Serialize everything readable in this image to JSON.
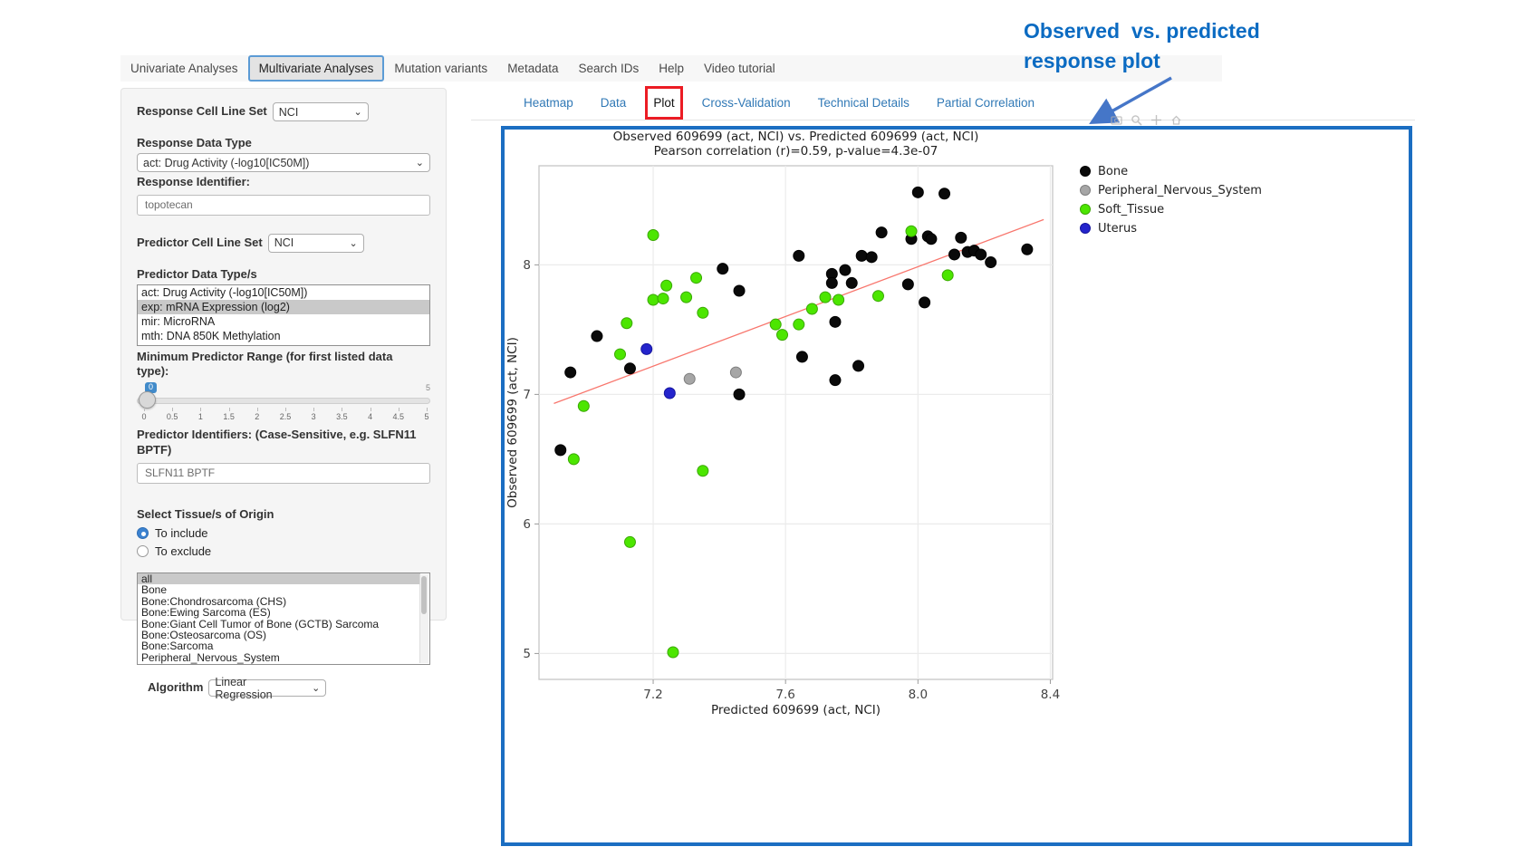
{
  "annotation": {
    "line1": "Observed  vs. predicted",
    "line2": "response plot"
  },
  "nav": {
    "items": [
      {
        "label": "Univariate Analyses",
        "active": false
      },
      {
        "label": "Multivariate Analyses",
        "active": true
      },
      {
        "label": "Mutation variants",
        "active": false
      },
      {
        "label": "Metadata",
        "active": false
      },
      {
        "label": "Search IDs",
        "active": false
      },
      {
        "label": "Help",
        "active": false
      },
      {
        "label": "Video tutorial",
        "active": false
      }
    ]
  },
  "sidebar": {
    "response_cell_line_set": {
      "label": "Response Cell Line Set",
      "value": "NCI"
    },
    "response_data_type": {
      "label": "Response Data Type",
      "value": "act: Drug Activity (-log10[IC50M])"
    },
    "response_identifier": {
      "label": "Response Identifier:",
      "value": "topotecan"
    },
    "predictor_cell_line_set": {
      "label": "Predictor Cell Line Set",
      "value": "NCI"
    },
    "predictor_data_types": {
      "label": "Predictor Data Type/s",
      "options": [
        {
          "label": "act: Drug Activity (-log10[IC50M])",
          "selected": false
        },
        {
          "label": "exp: mRNA Expression (log2)",
          "selected": true
        },
        {
          "label": "mir: MicroRNA",
          "selected": false
        },
        {
          "label": "mth: DNA 850K Methylation",
          "selected": false
        }
      ]
    },
    "min_predictor_range": {
      "label": "Minimum Predictor Range (for first listed data type):",
      "value": "0",
      "max_label": "5",
      "ticks": [
        "0",
        "0.5",
        "1",
        "1.5",
        "2",
        "2.5",
        "3",
        "3.5",
        "4",
        "4.5",
        "5"
      ]
    },
    "predictor_identifiers": {
      "label": "Predictor Identifiers: (Case-Sensitive, e.g. SLFN11 BPTF)",
      "value": "SLFN11 BPTF"
    },
    "tissue_origin": {
      "label": "Select Tissue/s of Origin",
      "options": [
        {
          "label": "To include",
          "selected": true
        },
        {
          "label": "To exclude",
          "selected": false
        }
      ]
    },
    "tissue_list": {
      "options": [
        {
          "label": "all",
          "selected": true
        },
        {
          "label": "Bone",
          "selected": false
        },
        {
          "label": "Bone:Chondrosarcoma (CHS)",
          "selected": false
        },
        {
          "label": "Bone:Ewing Sarcoma (ES)",
          "selected": false
        },
        {
          "label": "Bone:Giant Cell Tumor of Bone (GCTB) Sarcoma",
          "selected": false
        },
        {
          "label": "Bone:Osteosarcoma (OS)",
          "selected": false
        },
        {
          "label": "Bone:Sarcoma",
          "selected": false
        },
        {
          "label": "Peripheral_Nervous_System",
          "selected": false
        }
      ]
    },
    "algorithm": {
      "label": "Algorithm",
      "value": "Linear Regression"
    }
  },
  "subtabs": {
    "items": [
      {
        "label": "Heatmap",
        "active": false,
        "highlighted": false
      },
      {
        "label": "Data",
        "active": false,
        "highlighted": false
      },
      {
        "label": "Plot",
        "active": true,
        "highlighted": true
      },
      {
        "label": "Cross-Validation",
        "active": false,
        "highlighted": false
      },
      {
        "label": "Technical Details",
        "active": false,
        "highlighted": false
      },
      {
        "label": "Partial Correlation",
        "active": false,
        "highlighted": false
      }
    ]
  },
  "modebar": {
    "icons": [
      "camera-icon",
      "zoom-icon",
      "pan-icon",
      "home-icon"
    ]
  },
  "chart_data": {
    "type": "scatter",
    "title": "Observed 609699 (act, NCI) vs. Predicted 609699 (act, NCI)",
    "subtitle": "Pearson correlation (r)=0.59, p-value=4.3e-07",
    "xlabel": "Predicted 609699 (act, NCI)",
    "ylabel": "Observed 609699 (act, NCI)",
    "xlim": [
      6.855,
      8.407
    ],
    "ylim": [
      4.8,
      8.765
    ],
    "xticks": [
      7.2,
      7.6,
      8.0,
      8.4
    ],
    "yticks": [
      5,
      6,
      7,
      8
    ],
    "grid": true,
    "legend_position": "right",
    "regression_line": {
      "x": [
        6.9,
        8.38
      ],
      "y": [
        6.93,
        8.35
      ],
      "color": "#f8766d"
    },
    "series": [
      {
        "name": "Bone",
        "color": "#0a0a0a",
        "stroke": "#000000",
        "points": [
          [
            6.92,
            6.57
          ],
          [
            6.95,
            7.17
          ],
          [
            7.03,
            7.45
          ],
          [
            7.13,
            7.2
          ],
          [
            7.41,
            7.97
          ],
          [
            7.46,
            7.8
          ],
          [
            7.46,
            7.0
          ],
          [
            7.64,
            8.07
          ],
          [
            7.65,
            7.29
          ],
          [
            7.74,
            7.93
          ],
          [
            7.74,
            7.86
          ],
          [
            7.78,
            7.96
          ],
          [
            7.8,
            7.86
          ],
          [
            7.75,
            7.56
          ],
          [
            7.75,
            7.11
          ],
          [
            7.82,
            7.22
          ],
          [
            7.83,
            8.07
          ],
          [
            7.86,
            8.06
          ],
          [
            7.89,
            8.25
          ],
          [
            7.97,
            7.85
          ],
          [
            7.98,
            8.2
          ],
          [
            8.0,
            8.56
          ],
          [
            8.02,
            7.71
          ],
          [
            8.03,
            8.22
          ],
          [
            8.04,
            8.2
          ],
          [
            8.08,
            8.55
          ],
          [
            8.11,
            8.08
          ],
          [
            8.13,
            8.21
          ],
          [
            8.15,
            8.1
          ],
          [
            8.17,
            8.11
          ],
          [
            8.19,
            8.08
          ],
          [
            8.22,
            8.02
          ],
          [
            8.33,
            8.12
          ]
        ]
      },
      {
        "name": "Peripheral_Nervous_System",
        "color": "#a6a6a6",
        "stroke": "#7e7e7e",
        "points": [
          [
            7.31,
            7.12
          ],
          [
            7.45,
            7.17
          ]
        ]
      },
      {
        "name": "Soft_Tissue",
        "color": "#4ce600",
        "stroke": "#3aa800",
        "points": [
          [
            7.2,
            8.23
          ],
          [
            7.33,
            7.9
          ],
          [
            7.24,
            7.84
          ],
          [
            7.2,
            7.73
          ],
          [
            7.23,
            7.74
          ],
          [
            7.3,
            7.75
          ],
          [
            7.35,
            7.63
          ],
          [
            7.12,
            7.55
          ],
          [
            7.1,
            7.31
          ],
          [
            6.99,
            6.91
          ],
          [
            6.96,
            6.5
          ],
          [
            7.13,
            5.86
          ],
          [
            7.26,
            5.01
          ],
          [
            7.35,
            6.41
          ],
          [
            7.57,
            7.54
          ],
          [
            7.59,
            7.46
          ],
          [
            7.64,
            7.54
          ],
          [
            7.68,
            7.66
          ],
          [
            7.72,
            7.75
          ],
          [
            7.76,
            7.73
          ],
          [
            7.88,
            7.76
          ],
          [
            7.98,
            8.26
          ],
          [
            8.09,
            7.92
          ]
        ]
      },
      {
        "name": "Uterus",
        "color": "#2424cc",
        "stroke": "#16169e",
        "points": [
          [
            7.18,
            7.35
          ],
          [
            7.25,
            7.01
          ]
        ]
      }
    ]
  }
}
